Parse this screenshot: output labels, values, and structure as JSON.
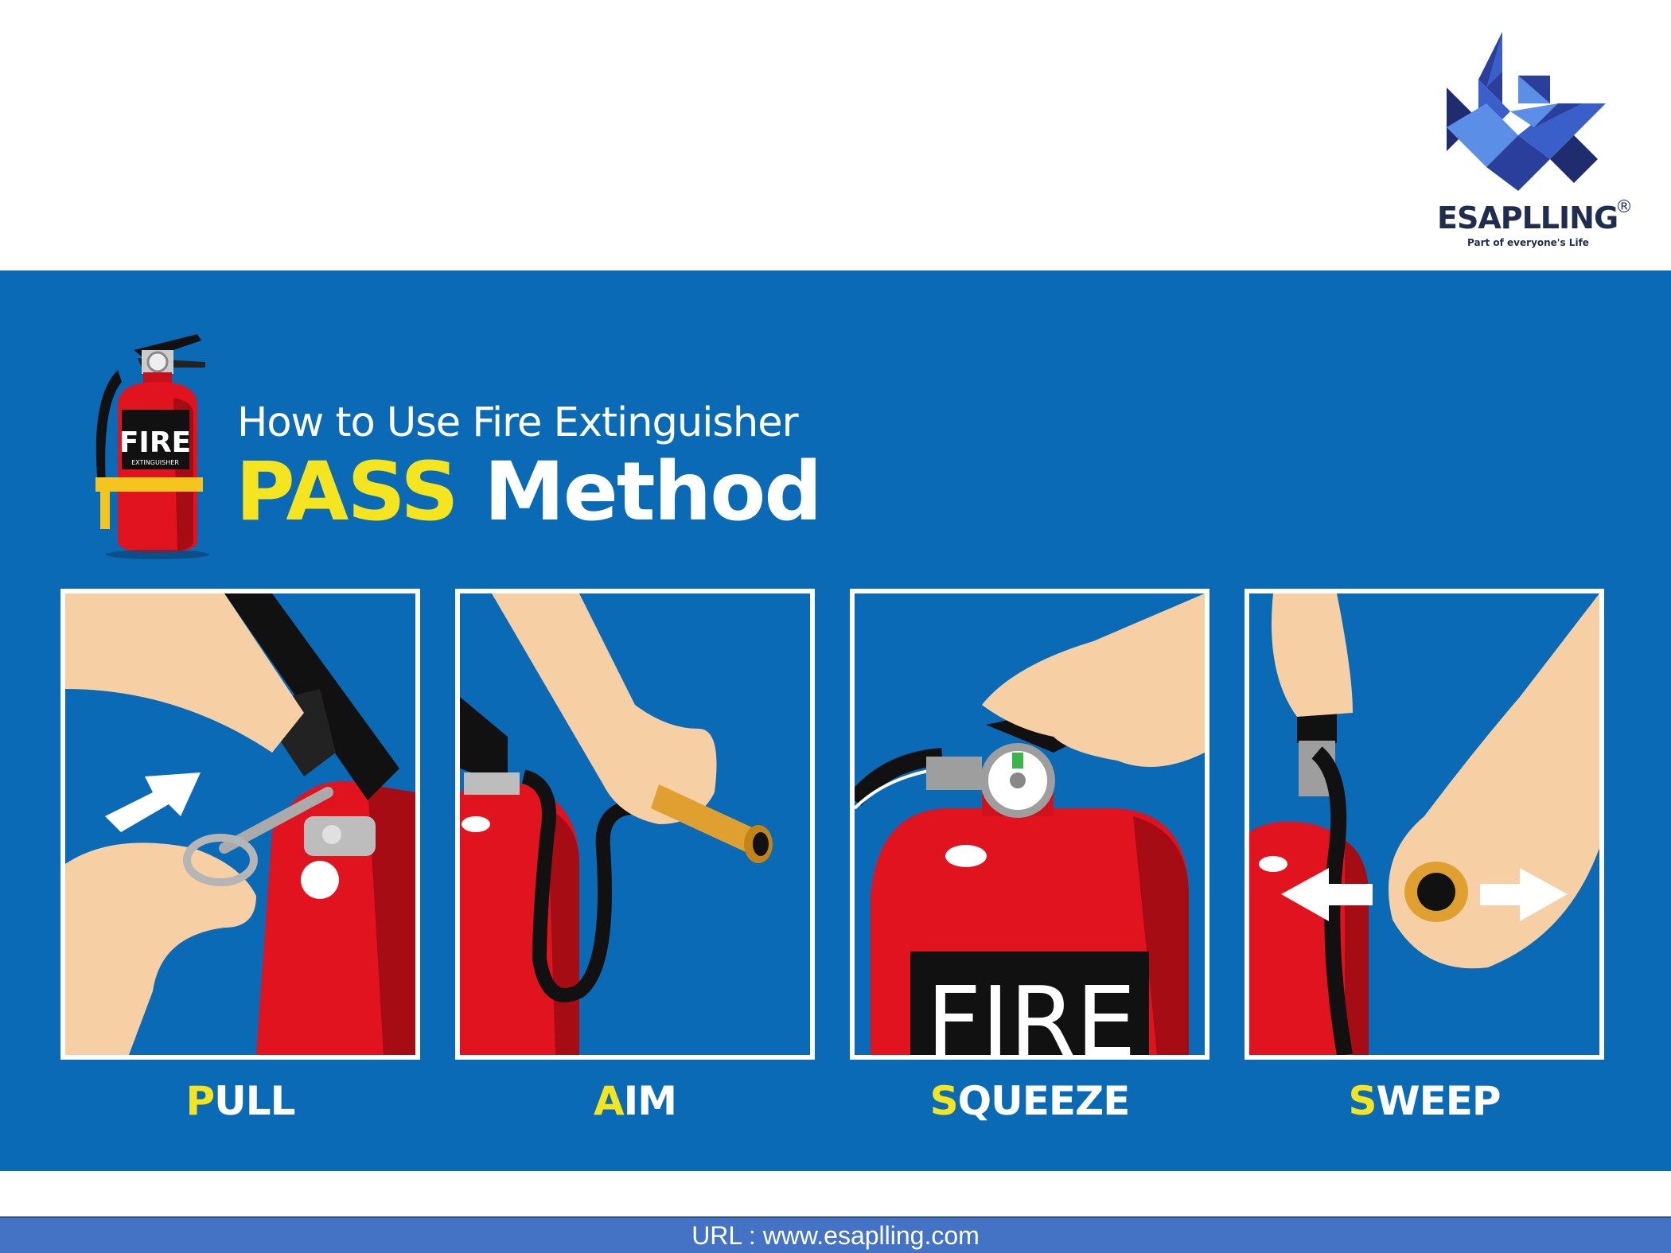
{
  "logo": {
    "brand": "ESAPLLING",
    "registered": "®",
    "tagline": "Part of everyone's Life",
    "colors": {
      "dark": "#1f2d4e",
      "blue": "#3a5fc8",
      "light": "#5b8ee6"
    }
  },
  "poster": {
    "subtitle": "How to Use Fire Extinguisher",
    "headline_accent": "PASS",
    "headline_rest": "Method",
    "extinguisher_label": "FIRE",
    "extinguisher_sublabel": "EXTINGUISHER",
    "background": "#0a6ab6",
    "accent_color": "#f4e51e",
    "steps": [
      {
        "initial": "P",
        "rest": "ULL",
        "icon": "pull-pin-icon"
      },
      {
        "initial": "A",
        "rest": "IM",
        "icon": "aim-nozzle-icon"
      },
      {
        "initial": "S",
        "rest": "QUEEZE",
        "icon": "squeeze-handle-icon",
        "label": "FIRE"
      },
      {
        "initial": "S",
        "rest": "WEEP",
        "icon": "sweep-side-icon"
      }
    ]
  },
  "footer": {
    "url_text": "URL : www.esaplling.com"
  }
}
